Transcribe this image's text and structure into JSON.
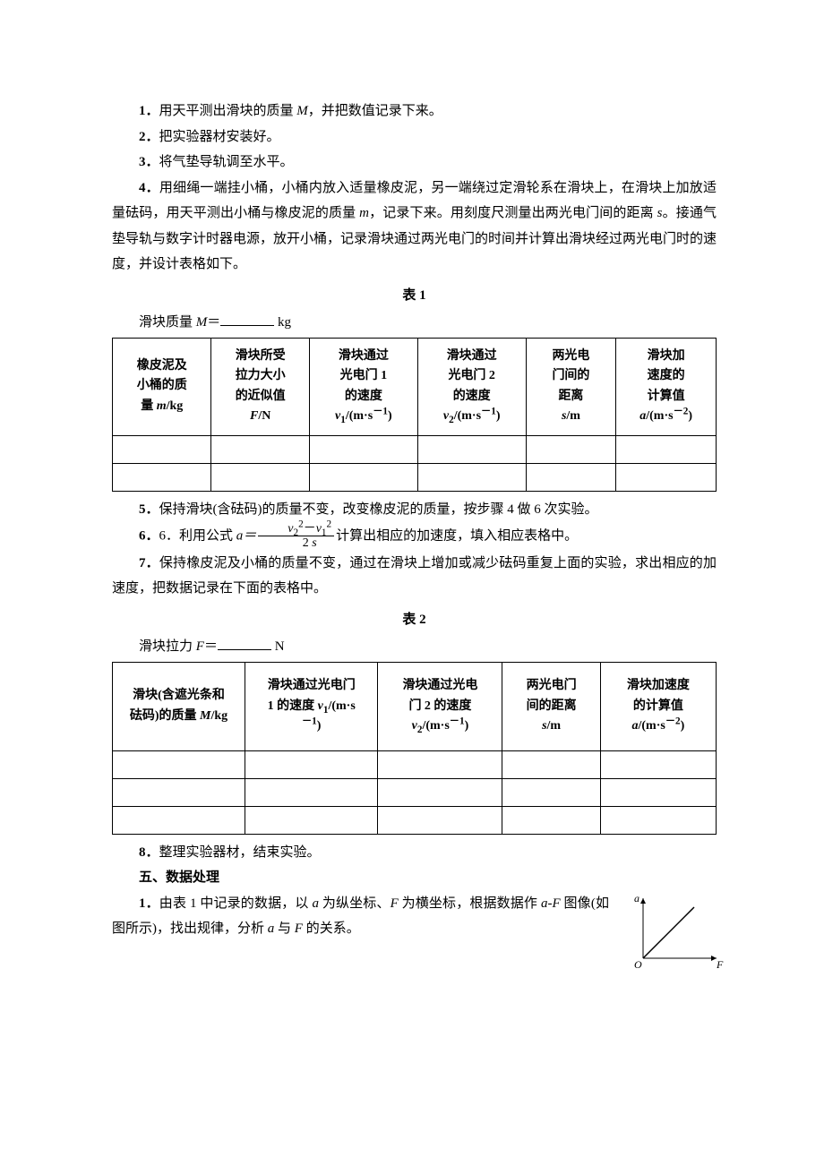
{
  "steps": {
    "s1": "1．用天平测出滑块的质量 M，并把数值记录下来。",
    "s2": "2．把实验器材安装好。",
    "s3": "3．将气垫导轨调至水平。",
    "s4": "4．用细绳一端挂小桶，小桶内放入适量橡皮泥，另一端绕过定滑轮系在滑块上，在滑块上加放适量砝码，用天平测出小桶与橡皮泥的质量 m，记录下来。用刻度尺测量出两光电门间的距离 s。接通气垫导轨与数字计时器电源，放开小桶，记录滑块通过两光电门的时间并计算出滑块经过两光电门时的速度，并设计表格如下。",
    "s5": "5．保持滑块(含砝码)的质量不变，改变橡皮泥的质量，按步骤 4 做 6 次实验。",
    "s6_pre": "6．利用公式 ",
    "s6_post": "计算出相应的加速度，填入相应表格中。",
    "s7": "7．保持橡皮泥及小桶的质量不变，通过在滑块上增加或减少砝码重复上面的实验，求出相应的加速度，把数据记录在下面的表格中。",
    "s8": "8．整理实验器材，结束实验。"
  },
  "tables": {
    "t1_caption": "表 1",
    "t1_pre_a": "滑块质量 ",
    "t1_pre_b": "＝",
    "t1_pre_unit": " kg",
    "t1": {
      "widths": [
        110,
        110,
        120,
        120,
        100,
        110
      ],
      "headers": [
        "橡皮泥及\n小桶的质\n量 m/kg",
        "滑块所受\n拉力大小\n的近似值\nF/N",
        "滑块通过\n光电门 1\n的速度\nv₁/(m·s⁻¹)",
        "滑块通过\n光电门 2\n的速度\nv₂/(m·s⁻¹)",
        "两光电\n门间的\n距离\ns/m",
        "滑块加\n速度的\n计算值\na/(m·s⁻²)"
      ],
      "rows": 2
    },
    "t2_caption": "表 2",
    "t2_pre_a": "滑块拉力 ",
    "t2_pre_b": "＝",
    "t2_pre_unit": " N",
    "t2": {
      "widths": [
        140,
        140,
        130,
        100,
        120
      ],
      "headers": [
        "滑块(含遮光条和\n砝码)的质量 M/kg",
        "滑块通过光电门\n1 的速度 v₁/(m·s\n⁻¹)",
        "滑块通过光电\n门 2 的速度\nv₂/(m·s⁻¹)",
        "两光电门\n间的距离\ns/m",
        "滑块加速度\n的计算值\na/(m·s⁻²)"
      ],
      "rows": 3
    }
  },
  "formula": {
    "lhs": "a＝",
    "num": "v₂² − v₁²",
    "den": "2 s"
  },
  "section5": {
    "head": "五、数据处理",
    "p1": "1．由表 1 中记录的数据，以 a 为纵坐标、F 为横坐标，根据数据作 a-F 图像(如图所示)，找出规律，分析 a 与 F 的关系。"
  },
  "graph": {
    "type": "line",
    "x_axis": "F",
    "y_axis": "a",
    "origin": "O",
    "line_color": "#000000",
    "axis_color": "#000000",
    "background_color": "#ffffff",
    "points": [
      [
        0,
        0
      ],
      [
        1,
        1
      ]
    ]
  }
}
